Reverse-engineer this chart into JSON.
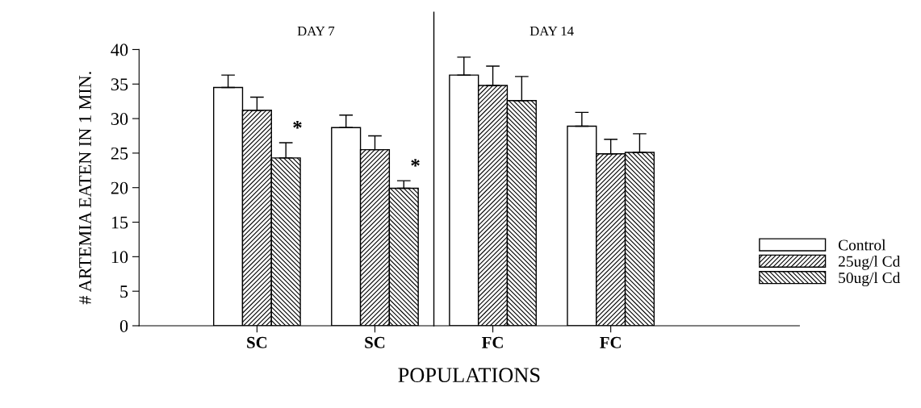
{
  "chart_data": {
    "type": "bar",
    "xlabel": "POPULATIONS",
    "ylabel": "# ARTEMIA EATEN IN 1 MIN.",
    "categories": [
      "SC",
      "SC",
      "FC",
      "FC"
    ],
    "series": [
      {
        "name": "Control",
        "color": "#ffffff",
        "values": [
          34.5,
          28.7,
          36.3,
          28.9
        ],
        "errors": [
          [
            34.5,
            36.3
          ],
          [
            28.7,
            30.5
          ],
          [
            36.3,
            38.9
          ],
          [
            28.9,
            30.9
          ]
        ]
      },
      {
        "name": "25ug/l Cd",
        "color": "#000000",
        "values": [
          31.2,
          25.5,
          34.8,
          24.9
        ],
        "errors": [
          [
            31.2,
            33.1
          ],
          [
            25.5,
            27.5
          ],
          [
            34.8,
            37.6
          ],
          [
            24.9,
            27.0
          ]
        ]
      },
      {
        "name": "50ug/l Cd",
        "color": "#000000",
        "values": [
          24.3,
          19.9,
          32.6,
          25.1
        ],
        "errors": [
          [
            24.3,
            26.5
          ],
          [
            19.9,
            21.0
          ],
          [
            32.6,
            36.1
          ],
          [
            25.1,
            27.8
          ]
        ],
        "value_labels": [
          "*",
          "*",
          null,
          null
        ]
      }
    ],
    "ylim": [
      0,
      40
    ],
    "yticks": [
      0,
      5,
      10,
      15,
      20,
      25,
      30,
      35,
      40
    ],
    "annotations": [
      "DAY 7",
      "DAY 14"
    ],
    "legend": "bottom right",
    "grid": false
  }
}
